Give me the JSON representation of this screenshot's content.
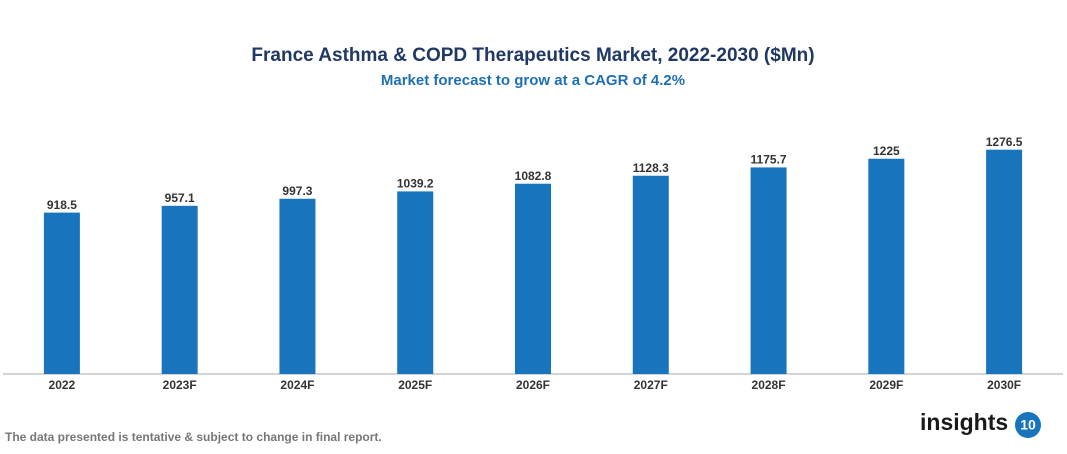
{
  "chart_data": {
    "type": "bar",
    "title": "France Asthma & COPD Therapeutics Market, 2022-2030 ($Mn)",
    "subtitle": "Market forecast to grow at a CAGR of 4.2%",
    "categories": [
      "2022",
      "2023F",
      "2024F",
      "2025F",
      "2026F",
      "2027F",
      "2028F",
      "2029F",
      "2030F"
    ],
    "values": [
      918.5,
      957.1,
      997.3,
      1039.2,
      1082.8,
      1128.3,
      1175.7,
      1225,
      1276.5
    ],
    "color": "#1874bd",
    "ylim": [
      0,
      1400
    ]
  },
  "footer": {
    "note": "The data presented is tentative & subject to change in final report.",
    "logo_text": "insights",
    "logo_badge": "10"
  }
}
